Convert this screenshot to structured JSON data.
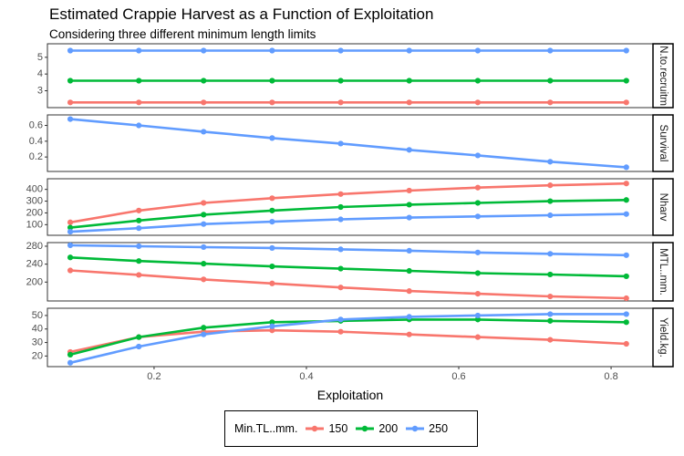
{
  "chart_data": {
    "type": "line",
    "title": "Estimated Crappie Harvest as a Function of Exploitation",
    "subtitle": "Considering three different minimum length limits",
    "xlabel": "Exploitation",
    "x": [
      0.09,
      0.18,
      0.265,
      0.355,
      0.445,
      0.535,
      0.625,
      0.72,
      0.82
    ],
    "xlim": [
      0.06,
      0.855
    ],
    "xticks": [
      0.2,
      0.4,
      0.6,
      0.8
    ],
    "legend_title": "Min.TL..mm.",
    "legend_position": "bottom",
    "series": [
      {
        "name": "150",
        "color": "#F8766D"
      },
      {
        "name": "200",
        "color": "#00BA38"
      },
      {
        "name": "250",
        "color": "#619CFF"
      }
    ],
    "panels": [
      {
        "strip": "N.to.recruitm",
        "ylim": [
          2.1,
          5.7
        ],
        "yticks": [
          3,
          4,
          5
        ],
        "series_values": [
          [
            2.3,
            2.3,
            2.3,
            2.3,
            2.3,
            2.3,
            2.3,
            2.3,
            2.3
          ],
          [
            3.6,
            3.6,
            3.6,
            3.6,
            3.6,
            3.6,
            3.6,
            3.6,
            3.6
          ],
          [
            5.4,
            5.4,
            5.4,
            5.4,
            5.4,
            5.4,
            5.4,
            5.4,
            5.4
          ]
        ]
      },
      {
        "strip": "Survival",
        "ylim": [
          0.04,
          0.71
        ],
        "yticks": [
          0.2,
          0.4,
          0.6
        ],
        "series_values": [
          null,
          null,
          [
            0.68,
            0.6,
            0.52,
            0.44,
            0.37,
            0.29,
            0.22,
            0.14,
            0.07
          ]
        ]
      },
      {
        "strip": "Nharv",
        "ylim": [
          25,
          475
        ],
        "yticks": [
          100,
          200,
          300,
          400
        ],
        "series_values": [
          [
            120,
            220,
            285,
            325,
            360,
            390,
            415,
            435,
            450
          ],
          [
            75,
            135,
            185,
            220,
            250,
            270,
            285,
            300,
            310
          ],
          [
            40,
            70,
            105,
            125,
            145,
            160,
            170,
            180,
            190
          ]
        ]
      },
      {
        "strip": "MTL..mm.",
        "ylim": [
          162,
          284
        ],
        "yticks": [
          200,
          240,
          280
        ],
        "series_values": [
          [
            226,
            216,
            206,
            197,
            188,
            180,
            174,
            168,
            164
          ],
          [
            255,
            247,
            241,
            235,
            230,
            225,
            220,
            217,
            213
          ],
          [
            282,
            280,
            278,
            276,
            273,
            270,
            266,
            263,
            260
          ]
        ]
      },
      {
        "strip": "Yield.kg.",
        "ylim": [
          13.5,
          54
        ],
        "yticks": [
          20,
          30,
          40,
          50
        ],
        "series_values": [
          [
            23,
            34,
            38,
            39,
            38,
            36,
            34,
            32,
            29
          ],
          [
            21,
            34,
            41,
            45,
            46,
            47,
            47,
            46,
            45
          ],
          [
            15,
            27,
            36,
            42,
            47,
            49,
            50,
            51,
            51
          ]
        ]
      }
    ]
  }
}
